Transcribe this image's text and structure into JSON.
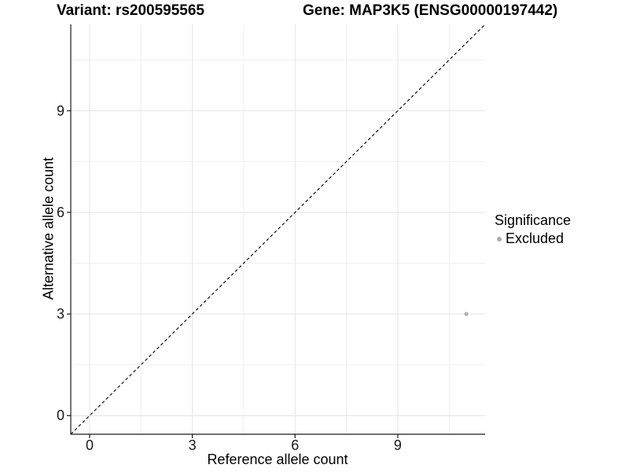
{
  "titles": {
    "variant": "Variant: rs200595565",
    "gene": "Gene: MAP3K5 (ENSG00000197442)"
  },
  "chart_data": {
    "type": "scatter",
    "xlabel": "Reference allele count",
    "ylabel": "Alternative allele count",
    "xlim": [
      -0.55,
      11.55
    ],
    "ylim": [
      -0.55,
      11.55
    ],
    "x_ticks": [
      0,
      3,
      6,
      9
    ],
    "y_ticks": [
      0,
      3,
      6,
      9
    ],
    "x_minor_ticks": [
      1.5,
      4.5,
      7.5,
      10.5
    ],
    "y_minor_ticks": [
      1.5,
      4.5,
      7.5,
      10.5
    ],
    "grid": true,
    "identity_line": {
      "style": "dashed",
      "from": [
        -0.55,
        -0.55
      ],
      "to": [
        11.55,
        11.55
      ],
      "color": "#000000"
    },
    "series": [
      {
        "name": "Excluded",
        "color": "#b2b2b2",
        "points": [
          {
            "x": 11,
            "y": 3
          }
        ]
      }
    ],
    "legend": {
      "title": "Significance",
      "position": "right",
      "items": [
        {
          "label": "Excluded",
          "color": "#aaaaaa"
        }
      ]
    },
    "style": {
      "grid_major_color": "#e3e3e3",
      "grid_minor_color": "#efefef",
      "axis_color": "#1a1a1a",
      "point_radius": 2.6,
      "background": "#ffffff"
    }
  }
}
